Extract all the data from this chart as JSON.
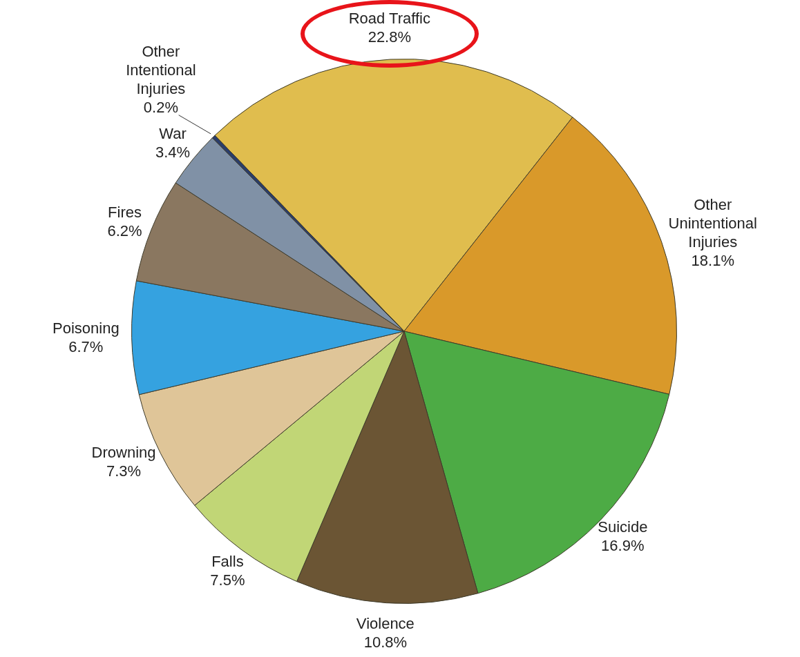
{
  "chart_data": {
    "type": "pie",
    "categories": [
      "Road Traffic",
      "Other Unintentional Injuries",
      "Suicide",
      "Violence",
      "Falls",
      "Drowning",
      "Poisoning",
      "Fires",
      "War",
      "Other Intentional Injuries"
    ],
    "values": [
      22.8,
      18.1,
      16.9,
      10.8,
      7.5,
      7.3,
      6.7,
      6.2,
      3.4,
      0.2
    ],
    "colors": [
      "#e0bd4e",
      "#d9992a",
      "#4dab45",
      "#6b5534",
      "#c1d676",
      "#dfc598",
      "#35a2e0",
      "#8a7760",
      "#8091a6",
      "#2a3d6b"
    ],
    "value_labels": [
      "22.8%",
      "18.1%",
      "16.9%",
      "10.8%",
      "7.5%",
      "7.3%",
      "6.7%",
      "6.2%",
      "3.4%",
      "0.2%"
    ],
    "legend": false
  }
}
